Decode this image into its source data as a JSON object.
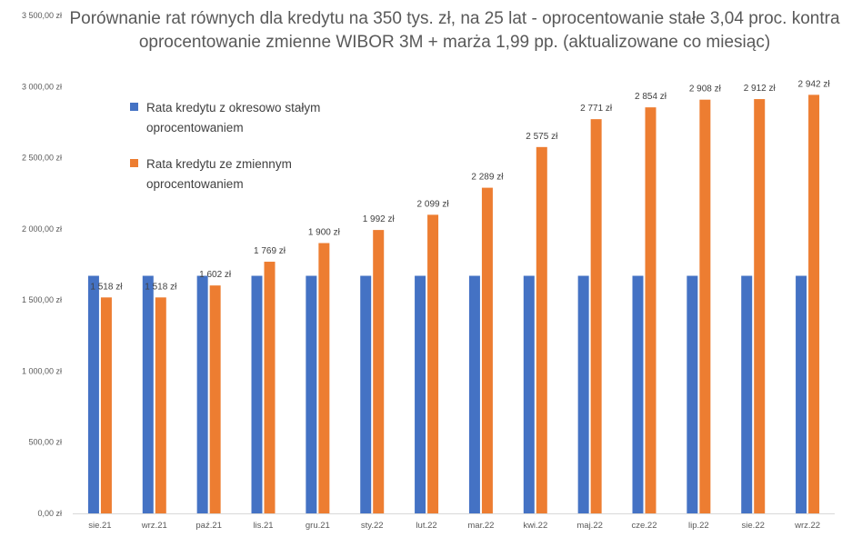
{
  "chart_data": {
    "type": "bar",
    "title": "Porównanie rat równych dla kredytu na 350 tys. zł, na 25 lat - oprocentowanie stałe 3,04 proc. kontra oprocentowanie zmienne WIBOR 3M + marża 1,99 pp. (aktualizowane co miesiąc)",
    "xlabel": "",
    "ylabel": "",
    "ylim": [
      0,
      3500
    ],
    "yticks": [
      {
        "value": 0,
        "label": "0,00 zł"
      },
      {
        "value": 500,
        "label": "500,00 zł"
      },
      {
        "value": 1000,
        "label": "1 000,00 zł"
      },
      {
        "value": 1500,
        "label": "1 500,00 zł"
      },
      {
        "value": 2000,
        "label": "2 000,00 zł"
      },
      {
        "value": 2500,
        "label": "2 500,00 zł"
      },
      {
        "value": 3000,
        "label": "3 000,00 zł"
      },
      {
        "value": 3500,
        "label": "3 500,00 zł"
      }
    ],
    "grid": false,
    "legend_position": "top-left",
    "categories": [
      "sie.21",
      "wrz.21",
      "paź.21",
      "lis.21",
      "gru.21",
      "sty.22",
      "lut.22",
      "mar.22",
      "kwi.22",
      "maj.22",
      "cze.22",
      "lip.22",
      "sie.22",
      "wrz.22"
    ],
    "series": [
      {
        "name": "Rata kredytu z okresowo stałym oprocentowaniem",
        "color": "#4472C4",
        "values": [
          1670,
          1670,
          1670,
          1670,
          1670,
          1670,
          1670,
          1670,
          1670,
          1670,
          1670,
          1670,
          1670,
          1670
        ],
        "data_labels": []
      },
      {
        "name": "Rata kredytu ze zmiennym oprocentowaniem",
        "color": "#ED7D31",
        "values": [
          1518,
          1518,
          1602,
          1769,
          1900,
          1992,
          2099,
          2289,
          2575,
          2771,
          2854,
          2908,
          2912,
          2942
        ],
        "data_labels": [
          "1 518 zł",
          "1 518 zł",
          "1 602 zł",
          "1 769 zł",
          "1 900 zł",
          "1 992 zł",
          "2 099 zł",
          "2 289 zł",
          "2 575 zł",
          "2 771 zł",
          "2 854 zł",
          "2 908 zł",
          "2 912 zł",
          "2 942 zł"
        ]
      }
    ]
  }
}
